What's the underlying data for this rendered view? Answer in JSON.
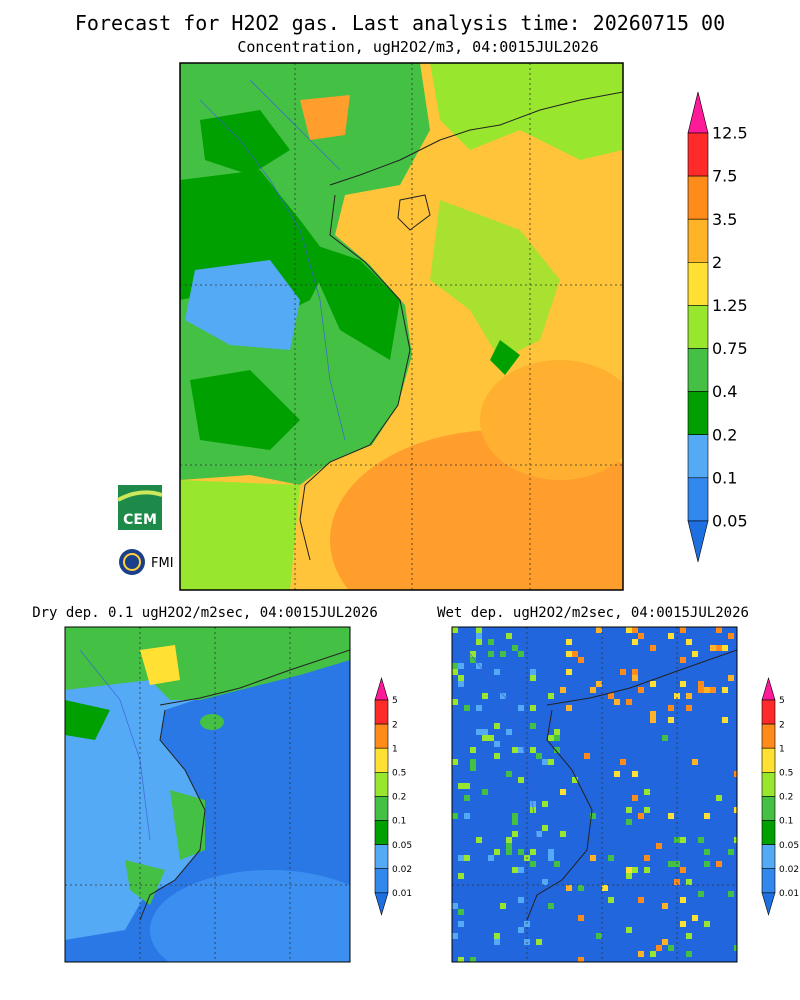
{
  "title": "Forecast for H2O2 gas. Last analysis time: 20260715 00",
  "main": {
    "subtitle": "Concentration, ugH2O2/m3, 04:0015JUL2026",
    "colorbar": {
      "labels": [
        "12.5",
        "7.5",
        "3.5",
        "2",
        "1.25",
        "0.75",
        "0.4",
        "0.2",
        "0.1",
        "0.05"
      ],
      "colors": [
        "#ff1a9a",
        "#ff2a2a",
        "#ff8c1a",
        "#ffb428",
        "#ffe033",
        "#99e62e",
        "#44c044",
        "#00a000",
        "#55aaf5",
        "#3388ee",
        "#1e6fe0"
      ]
    }
  },
  "dry": {
    "title": "Dry dep. 0.1 ugH2O2/m2sec, 04:0015JUL2026",
    "colorbar": {
      "labels": [
        "5",
        "2",
        "1",
        "0.5",
        "0.2",
        "0.1",
        "0.05",
        "0.02",
        "0.01"
      ],
      "colors": [
        "#ff1a9a",
        "#ff2a2a",
        "#ff8c1a",
        "#ffe033",
        "#99e62e",
        "#44c044",
        "#00a000",
        "#55aaf5",
        "#3388ee",
        "#1e6fe0"
      ]
    }
  },
  "wet": {
    "title": "Wet dep. ugH2O2/m2sec, 04:0015JUL2026",
    "colorbar": {
      "labels": [
        "5",
        "2",
        "1",
        "0.5",
        "0.2",
        "0.1",
        "0.05",
        "0.02",
        "0.01"
      ],
      "colors": [
        "#ff1a9a",
        "#ff2a2a",
        "#ff8c1a",
        "#ffe033",
        "#99e62e",
        "#44c044",
        "#00a000",
        "#55aaf5",
        "#3388ee",
        "#1e6fe0"
      ]
    }
  },
  "logos": {
    "cem": "CEM",
    "fmi": "FMI"
  }
}
